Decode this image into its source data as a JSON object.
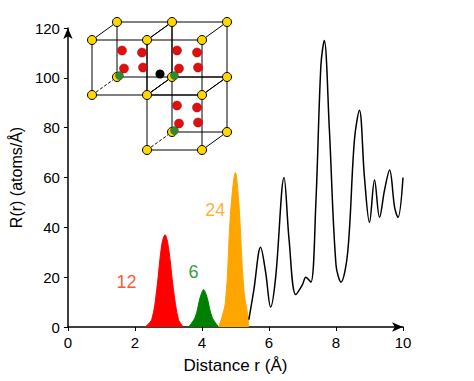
{
  "chart_data": {
    "type": "line",
    "x_label": "Distance r (Å)",
    "y_label": "R(r) (atoms/Å)",
    "xlim": [
      0,
      10
    ],
    "xticks": [
      0,
      2,
      4,
      6,
      8,
      10
    ],
    "ylim": [
      0,
      120
    ],
    "yticks": [
      0,
      20,
      40,
      60,
      80,
      100,
      120
    ],
    "grid": false,
    "series": [
      {
        "type": "area",
        "color": "#ff0000",
        "x": [
          2.3,
          2.5,
          2.65,
          2.8,
          2.9,
          3.0,
          3.15,
          3.3,
          3.45
        ],
        "values": [
          0,
          3,
          15,
          33,
          37,
          32,
          15,
          3,
          0
        ]
      },
      {
        "type": "area",
        "color": "#008000",
        "x": [
          3.6,
          3.8,
          3.95,
          4.05,
          4.15,
          4.3,
          4.5
        ],
        "values": [
          0,
          4,
          12,
          15,
          12,
          4,
          0
        ]
      },
      {
        "type": "area",
        "color": "#ffa500",
        "x": [
          4.5,
          4.7,
          4.85,
          5.0,
          5.1,
          5.25,
          5.4
        ],
        "values": [
          0,
          10,
          45,
          62,
          50,
          15,
          3
        ]
      },
      {
        "type": "line",
        "color": "#000000",
        "x": [
          5.4,
          5.55,
          5.75,
          5.9,
          6.05,
          6.2,
          6.45,
          6.6,
          6.8,
          7.0,
          7.1,
          7.25,
          7.4,
          7.55,
          7.65,
          7.8,
          8.0,
          8.15,
          8.35,
          8.55,
          8.7,
          8.85,
          9.0,
          9.15,
          9.3,
          9.45,
          9.6,
          9.75,
          9.85,
          10.0
        ],
        "values": [
          3,
          15,
          32,
          22,
          8,
          20,
          60,
          35,
          13,
          17,
          20,
          18,
          50,
          105,
          115,
          80,
          25,
          18,
          30,
          75,
          87,
          60,
          42,
          59,
          44,
          55,
          63,
          48,
          44,
          60
        ]
      }
    ],
    "annotations": [
      {
        "text": "12",
        "x": 1.75,
        "y": 18,
        "color": "#ff2a00"
      },
      {
        "text": "6",
        "x": 3.75,
        "y": 22,
        "color": "#008000"
      },
      {
        "text": "24",
        "x": 4.4,
        "y": 47,
        "color": "#ff9900"
      }
    ]
  }
}
